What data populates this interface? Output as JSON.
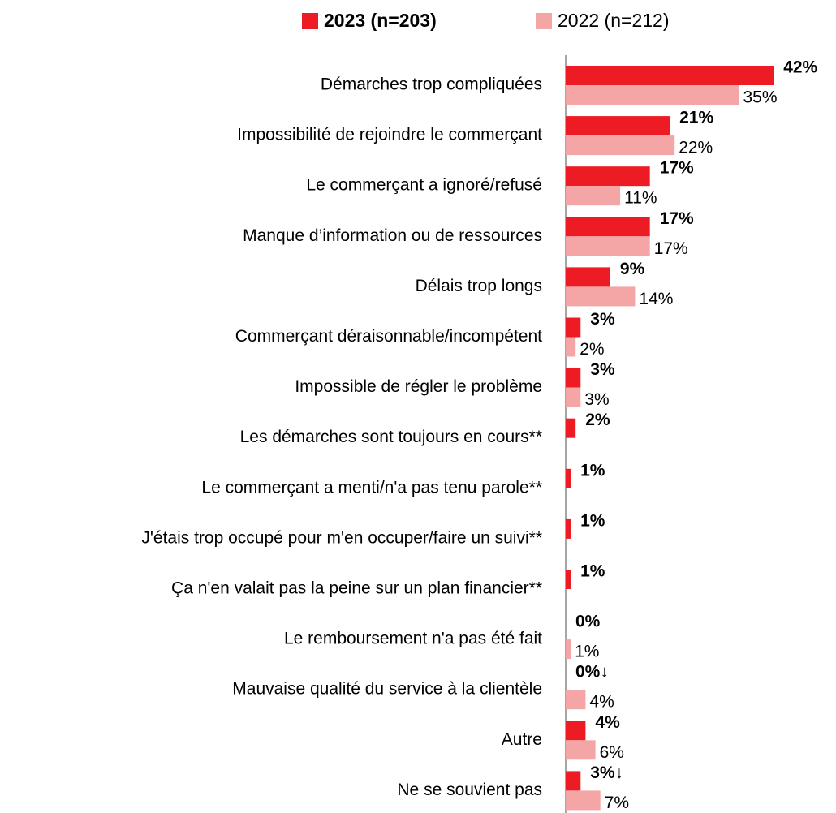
{
  "chart_data": {
    "type": "bar",
    "orientation": "horizontal",
    "categories": [
      "Démarches trop compliquées",
      "Impossibilité de rejoindre le commerçant",
      "Le commerçant a ignoré/refusé",
      "Manque d’information ou de ressources",
      "Délais trop longs",
      "Commerçant déraisonnable/incompétent",
      "Impossible de régler le problème",
      "Les démarches sont toujours en cours**",
      "Le commerçant a menti/n'a pas tenu parole**",
      "J'étais trop occupé pour m'en occuper/faire un suivi**",
      "Ça n'en valait pas la peine sur un plan financier**",
      "Le remboursement n'a pas été fait",
      "Mauvaise qualité du service à la clientèle",
      "Autre",
      "Ne se souvient pas"
    ],
    "series": [
      {
        "name": "2023 (n=203)",
        "color": "#ed1c24",
        "bold": true,
        "values": [
          42,
          21,
          17,
          17,
          9,
          3,
          3,
          2,
          1,
          1,
          1,
          0,
          0,
          4,
          3
        ],
        "value_labels": [
          "42%",
          "21%",
          "17%",
          "17%",
          "9%",
          "3%",
          "3%",
          "2%",
          "1%",
          "1%",
          "1%",
          "0%",
          "0%↓",
          "4%",
          "3%↓"
        ]
      },
      {
        "name": "2022 (n=212)",
        "color": "#f4a6a6",
        "bold": false,
        "values": [
          35,
          22,
          11,
          17,
          14,
          2,
          3,
          null,
          null,
          null,
          null,
          1,
          4,
          6,
          7
        ],
        "value_labels": [
          "35%",
          "22%",
          "11%",
          "17%",
          "14%",
          "2%",
          "3%",
          null,
          null,
          null,
          null,
          "1%",
          "4%",
          "6%",
          "7%"
        ]
      }
    ],
    "legend": "top"
  }
}
